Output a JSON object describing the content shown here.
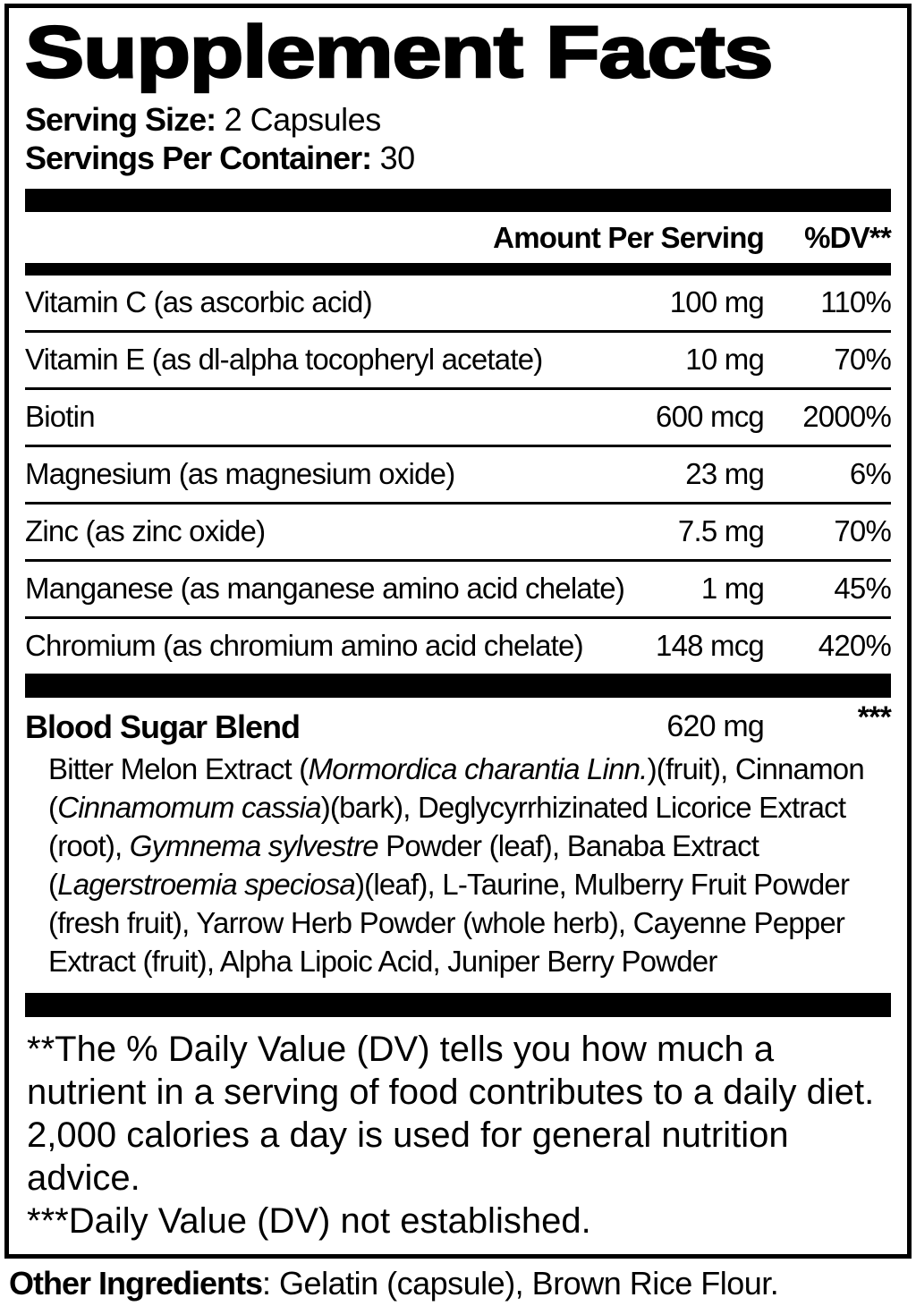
{
  "title": "Supplement Facts",
  "serving": {
    "size_label": "Serving Size:",
    "size_value": "2 Capsules",
    "per_container_label": "Servings Per Container:",
    "per_container_value": "30"
  },
  "table": {
    "header": {
      "amount": "Amount Per Serving",
      "dv": "%DV**"
    },
    "rows": [
      {
        "name": "Vitamin C (as ascorbic acid)",
        "amount": "100 mg",
        "dv": "110%"
      },
      {
        "name": "Vitamin E (as dl-alpha tocopheryl acetate)",
        "amount": "10 mg",
        "dv": "70%"
      },
      {
        "name": "Biotin",
        "amount": "600 mcg",
        "dv": "2000%"
      },
      {
        "name": "Magnesium (as magnesium oxide)",
        "amount": "23 mg",
        "dv": "6%"
      },
      {
        "name": "Zinc (as zinc oxide)",
        "amount": "7.5 mg",
        "dv": "70%"
      },
      {
        "name": "Manganese (as manganese amino acid chelate)",
        "amount": "1 mg",
        "dv": "45%"
      },
      {
        "name": "Chromium (as chromium amino acid chelate)",
        "amount": "148 mcg",
        "dv": "420%"
      }
    ]
  },
  "blend": {
    "name": "Blood Sugar Blend",
    "amount": "620 mg",
    "dv": "***",
    "ingredients_segments": [
      {
        "text": "Bitter Melon Extract (",
        "italic": false
      },
      {
        "text": "Mormordica charantia Linn.",
        "italic": true
      },
      {
        "text": ")(fruit), Cinnamon (",
        "italic": false
      },
      {
        "text": "Cinnamomum cassia",
        "italic": true
      },
      {
        "text": ")(bark), Deglycyrrhizinated Licorice Extract (root), ",
        "italic": false
      },
      {
        "text": "Gymnema sylvestre",
        "italic": true
      },
      {
        "text": " Powder (leaf), Banaba Extract (",
        "italic": false
      },
      {
        "text": "Lagerstroemia speciosa",
        "italic": true
      },
      {
        "text": ")(leaf), L-Taurine, Mulberry Fruit Powder (fresh fruit), Yarrow Herb Powder (whole herb), Cayenne Pepper Extract (fruit), Alpha Lipoic Acid, Juniper Berry Powder",
        "italic": false
      }
    ]
  },
  "footnotes": {
    "dv_note": "**The % Daily Value (DV) tells you how much a nutrient in a serving of food contributes to a daily diet. 2,000 calories a day is used for general nutrition advice.",
    "not_established_note": "***Daily Value (DV) not established."
  },
  "other_ingredients": {
    "label": "Other Ingredients",
    "value": ": Gelatin (capsule), Brown Rice Flour."
  },
  "colors": {
    "text": "#000000",
    "background": "#ffffff"
  }
}
